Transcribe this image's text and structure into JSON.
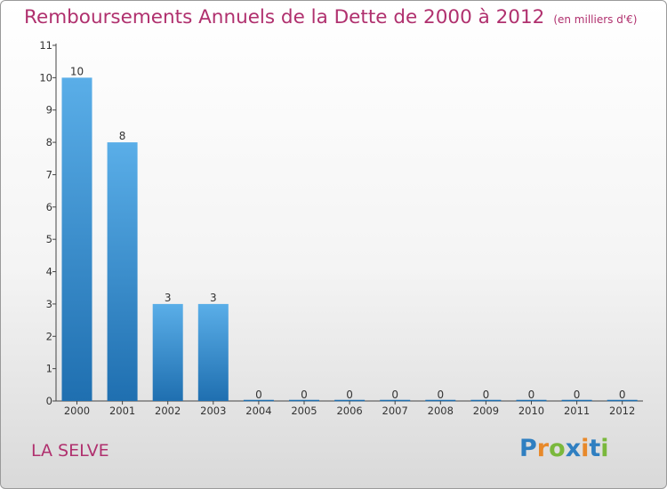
{
  "header": {
    "title": "Remboursements Annuels de la Dette de 2000 à 2012",
    "subtitle": "(en milliers d'€)"
  },
  "footer": {
    "location": "LA SELVE",
    "logo_text": "Proxiti"
  },
  "colors": {
    "title": "#b0306e",
    "bar_light": "#5aaee8",
    "bar_dark": "#1f6fb0",
    "axis": "#444444"
  },
  "chart_data": {
    "type": "bar",
    "categories": [
      "2000",
      "2001",
      "2002",
      "2003",
      "2004",
      "2005",
      "2006",
      "2007",
      "2008",
      "2009",
      "2010",
      "2011",
      "2012"
    ],
    "values": [
      10,
      8,
      3,
      3,
      0,
      0,
      0,
      0,
      0,
      0,
      0,
      0,
      0
    ],
    "ylim": [
      0,
      11
    ],
    "yticks": [
      0,
      1,
      2,
      3,
      4,
      5,
      6,
      7,
      8,
      9,
      10,
      11
    ],
    "data_labels": true,
    "grid": false,
    "legend": "none"
  }
}
